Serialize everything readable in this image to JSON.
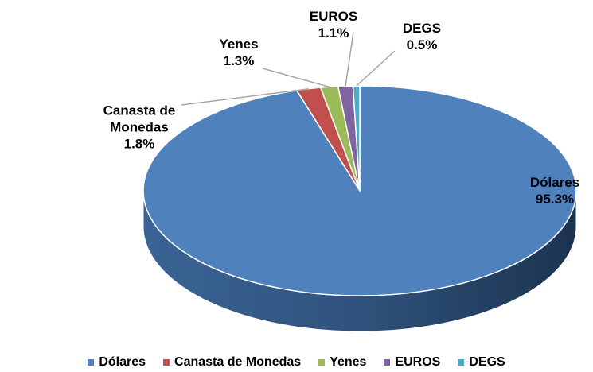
{
  "chart_data": {
    "type": "pie",
    "categories": [
      "Dólares",
      "Canasta de Monedas",
      "Yenes",
      "EUROS",
      "DEGS"
    ],
    "values": [
      95.3,
      1.8,
      1.3,
      1.1,
      0.5
    ],
    "value_labels": [
      "95.3%",
      "1.8%",
      "1.3%",
      "1.1%",
      "0.5%"
    ],
    "colors": [
      "#4f81bd",
      "#c0504d",
      "#9bbb59",
      "#8064a2",
      "#4bacc6"
    ],
    "legend": "bottom"
  }
}
